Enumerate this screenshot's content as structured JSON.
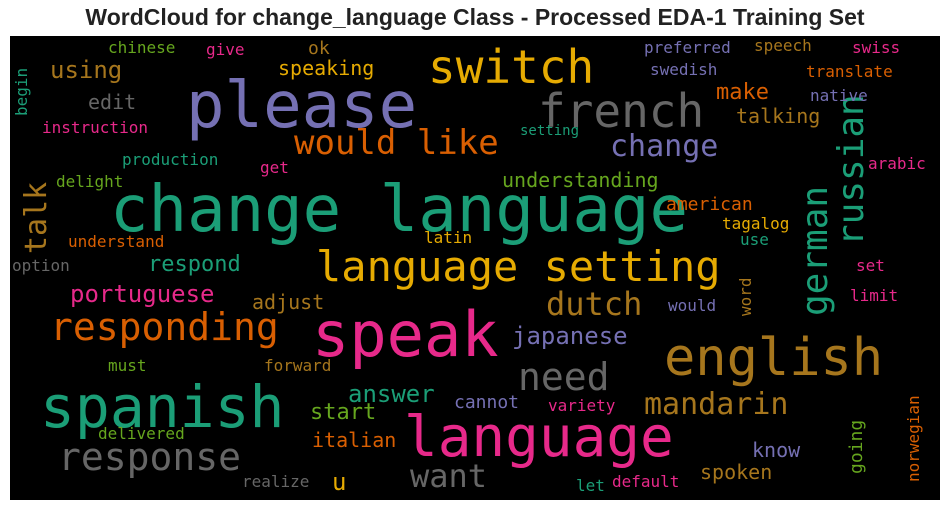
{
  "title": "WordCloud for change_language Class - Processed EDA-1 Training Set",
  "colors": {
    "teal": "#1b9e77",
    "orange": "#d95f02",
    "purple": "#7570b3",
    "pink": "#e7298a",
    "green": "#66a61e",
    "gold": "#e6ab02",
    "brown": "#a6761d",
    "gray": "#666666"
  },
  "words": [
    {
      "text": "change language",
      "color": "#1b9e77"
    },
    {
      "text": "please",
      "color": "#7570b3"
    },
    {
      "text": "language",
      "color": "#e7298a"
    },
    {
      "text": "speak",
      "color": "#e7298a"
    },
    {
      "text": "spanish",
      "color": "#1b9e77"
    },
    {
      "text": "english",
      "color": "#a6761d"
    },
    {
      "text": "language setting",
      "color": "#e6ab02"
    },
    {
      "text": "french",
      "color": "#666666"
    },
    {
      "text": "switch",
      "color": "#e6ab02"
    },
    {
      "text": "responding",
      "color": "#d95f02"
    },
    {
      "text": "response",
      "color": "#666666"
    },
    {
      "text": "would like",
      "color": "#d95f02"
    },
    {
      "text": "need",
      "color": "#666666"
    },
    {
      "text": "german",
      "color": "#1b9e77"
    },
    {
      "text": "russian",
      "color": "#1b9e77"
    },
    {
      "text": "mandarin",
      "color": "#a6761d"
    },
    {
      "text": "want",
      "color": "#666666"
    },
    {
      "text": "dutch",
      "color": "#a6761d"
    },
    {
      "text": "change",
      "color": "#7570b3"
    },
    {
      "text": "talk",
      "color": "#a6761d"
    },
    {
      "text": "japanese",
      "color": "#7570b3"
    },
    {
      "text": "portuguese",
      "color": "#e7298a"
    },
    {
      "text": "using",
      "color": "#a6761d"
    },
    {
      "text": "answer",
      "color": "#1b9e77"
    },
    {
      "text": "respond",
      "color": "#1b9e77"
    },
    {
      "text": "start",
      "color": "#66a61e"
    },
    {
      "text": "make",
      "color": "#d95f02"
    },
    {
      "text": "understanding",
      "color": "#66a61e"
    },
    {
      "text": "talking",
      "color": "#a6761d"
    },
    {
      "text": "spoken",
      "color": "#a6761d"
    },
    {
      "text": "italian",
      "color": "#d95f02"
    },
    {
      "text": "know",
      "color": "#7570b3"
    },
    {
      "text": "edit",
      "color": "#666666"
    },
    {
      "text": "adjust",
      "color": "#a6761d"
    },
    {
      "text": "speaking",
      "color": "#e6ab02"
    },
    {
      "text": "american",
      "color": "#d95f02"
    },
    {
      "text": "cannot",
      "color": "#7570b3"
    },
    {
      "text": "going",
      "color": "#66a61e"
    },
    {
      "text": "ok",
      "color": "#a6761d"
    },
    {
      "text": "preferred",
      "color": "#7570b3"
    },
    {
      "text": "speech",
      "color": "#a6761d"
    },
    {
      "text": "swiss",
      "color": "#e7298a"
    },
    {
      "text": "swedish",
      "color": "#7570b3"
    },
    {
      "text": "translate",
      "color": "#d95f02"
    },
    {
      "text": "native",
      "color": "#7570b3"
    },
    {
      "text": "chinese",
      "color": "#66a61e"
    },
    {
      "text": "give",
      "color": "#e7298a"
    },
    {
      "text": "begin",
      "color": "#1b9e77"
    },
    {
      "text": "instruction",
      "color": "#e7298a"
    },
    {
      "text": "setting",
      "color": "#1b9e77"
    },
    {
      "text": "production",
      "color": "#1b9e77"
    },
    {
      "text": "get",
      "color": "#e7298a"
    },
    {
      "text": "delight",
      "color": "#66a61e"
    },
    {
      "text": "arabic",
      "color": "#e7298a"
    },
    {
      "text": "tagalog",
      "color": "#e6ab02"
    },
    {
      "text": "understand",
      "color": "#d95f02"
    },
    {
      "text": "latin",
      "color": "#e6ab02"
    },
    {
      "text": "use",
      "color": "#1b9e77"
    },
    {
      "text": "option",
      "color": "#666666"
    },
    {
      "text": "set",
      "color": "#e7298a"
    },
    {
      "text": "limit",
      "color": "#e7298a"
    },
    {
      "text": "would",
      "color": "#7570b3"
    },
    {
      "text": "word",
      "color": "#a6761d"
    },
    {
      "text": "must",
      "color": "#66a61e"
    },
    {
      "text": "forward",
      "color": "#a6761d"
    },
    {
      "text": "variety",
      "color": "#e7298a"
    },
    {
      "text": "delivered",
      "color": "#66a61e"
    },
    {
      "text": "norwegian",
      "color": "#d95f02"
    },
    {
      "text": "u",
      "color": "#e6ab02"
    },
    {
      "text": "realize",
      "color": "#666666"
    },
    {
      "text": "let",
      "color": "#1b9e77"
    },
    {
      "text": "default",
      "color": "#e7298a"
    }
  ]
}
